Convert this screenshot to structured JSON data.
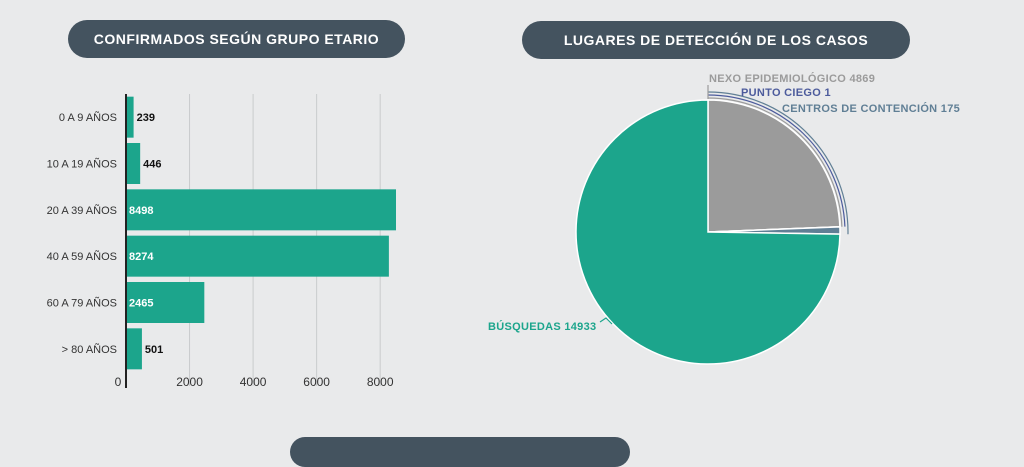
{
  "titles": {
    "age_chart": "CONFIRMADOS SEGÚN GRUPO ETARIO",
    "location_chart": "LUGARES DE DETECCIÓN DE LOS CASOS"
  },
  "colors": {
    "teal": "#1ca58c",
    "grey": "#9b9b9b",
    "navy": "#44535f",
    "blue_grey": "#607f95",
    "purple": "#4c5b9c"
  },
  "chart_data": [
    {
      "type": "bar",
      "orientation": "horizontal",
      "title": "CONFIRMADOS SEGÚN GRUPO ETARIO",
      "categories": [
        "0 A 9 AÑOS",
        "10 A 19 AÑOS",
        "20 A 39 AÑOS",
        "40 A 59 AÑOS",
        "60 A 79 AÑOS",
        "> 80 AÑOS"
      ],
      "values": [
        239,
        446,
        8498,
        8274,
        2465,
        501
      ],
      "xlim": [
        0,
        9000
      ],
      "xticks": [
        0,
        2000,
        4000,
        6000,
        8000
      ],
      "grid": true
    },
    {
      "type": "pie",
      "title": "LUGARES DE DETECCIÓN DE LOS CASOS",
      "slices": [
        {
          "label": "NEXO EPIDEMIOLÓGICO",
          "value": 4869,
          "color": "#9b9b9b"
        },
        {
          "label": "PUNTO CIEGO",
          "value": 1,
          "color": "#4c5b9c"
        },
        {
          "label": "CENTROS DE CONTENCIÓN",
          "value": 175,
          "color": "#607f95"
        },
        {
          "label": "BÚSQUEDAS",
          "value": 14933,
          "color": "#1ca58c"
        }
      ]
    }
  ]
}
